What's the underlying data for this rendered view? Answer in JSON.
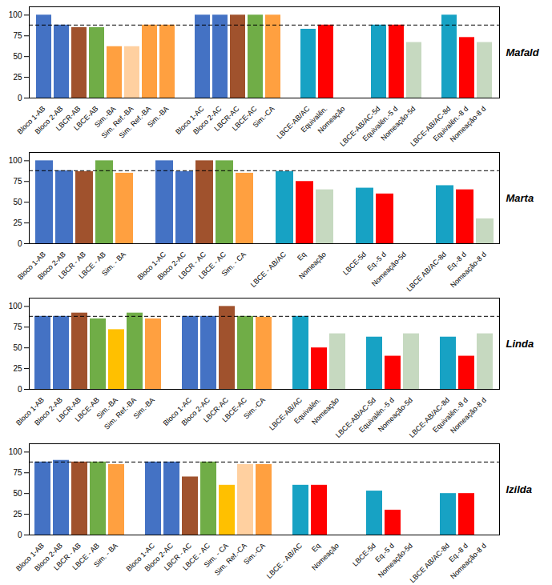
{
  "chart_data": [
    {
      "type": "bar",
      "title": "Mafald",
      "categories": [
        "Bloco 1-AB",
        "Bloco 2-AB",
        "LBCR-AB",
        "LBCE-AB",
        "Sim.-BA",
        "Sim. Ref.-BA",
        "Sim. Ref.-BA",
        "Sim.-BA",
        null,
        "Bloco 1-AC",
        "Bloco 2-AC",
        "LBCR-AC",
        "LBCE-AC",
        "Sim.-CA",
        null,
        "LBCE-AB/AC",
        "Equivalên.",
        "Nomeação",
        null,
        "LBCE-AB/AC-5d",
        "Equivalên.-5 d",
        "Nomeação-5d",
        null,
        "LBCE-AB/AC-8d",
        "Equivalên.-8 d",
        "Nomeação-8 d"
      ],
      "values": [
        100,
        88,
        85,
        85,
        62,
        62,
        88,
        88,
        null,
        100,
        100,
        100,
        100,
        100,
        null,
        83,
        88,
        0,
        null,
        88,
        88,
        67,
        null,
        100,
        73,
        67
      ],
      "colors": [
        "#4472C4",
        "#4472C4",
        "#A0522D",
        "#70AD47",
        "#FFA040",
        "#FFD0A0",
        "#FFA040",
        "#FFA040",
        null,
        "#4472C4",
        "#4472C4",
        "#A0522D",
        "#70AD47",
        "#FFA040",
        null,
        "#17A2C4",
        "#FF0000",
        "#A9D18E",
        null,
        "#17A2C4",
        "#FF0000",
        "#C6D9C0",
        null,
        "#17A2C4",
        "#FF0000",
        "#C6D9C0"
      ],
      "reference_y": 88,
      "ylim": [
        0,
        110
      ],
      "yticks": [
        0,
        25,
        50,
        75,
        100
      ],
      "grid": false
    },
    {
      "type": "bar",
      "title": "Marta",
      "categories": [
        "Bloco 1-AB",
        "Bloco 2-AB",
        "LBCR - AB",
        "LBCE - AB",
        "Sim. - BA",
        null,
        "Bloco 1-AC",
        "Bloco 2-AC",
        "LBCR - AC",
        "LBCE - AC",
        "Sim. - CA",
        null,
        "LBCE - AB/AC",
        "Eq",
        "Nomeação",
        null,
        "LBCE-5d",
        "Eq.-5 d",
        "Nomeação-5d",
        null,
        "LBCE AB/AC-8d",
        "Eq.-8 d",
        "Nomeação-8 d"
      ],
      "values": [
        100,
        88,
        87,
        100,
        85,
        null,
        100,
        87,
        100,
        100,
        85,
        null,
        87,
        75,
        65,
        null,
        67,
        60,
        0,
        null,
        70,
        65,
        30
      ],
      "colors": [
        "#4472C4",
        "#4472C4",
        "#A0522D",
        "#70AD47",
        "#FFA040",
        null,
        "#4472C4",
        "#4472C4",
        "#A0522D",
        "#70AD47",
        "#FFA040",
        null,
        "#17A2C4",
        "#FF0000",
        "#C6D9C0",
        null,
        "#17A2C4",
        "#FF0000",
        "#C6D9C0",
        null,
        "#17A2C4",
        "#FF0000",
        "#C6D9C0"
      ],
      "reference_y": 88,
      "ylim": [
        0,
        110
      ],
      "yticks": [
        0,
        25,
        50,
        75,
        100
      ],
      "grid": false
    },
    {
      "type": "bar",
      "title": "Linda",
      "categories": [
        "Bloco 1-AB",
        "Bloco 2-AB",
        "LBCR-AB",
        "LBCE-AB",
        "Sim.-BA",
        "Sim. Ref.-BA",
        "Sim.-BA",
        null,
        "Bloco 1-AC",
        "Bloco 2-AC",
        "LBCR-AC",
        "LBCE-AC",
        "Sim.-CA",
        null,
        "LBCE-AB/AC",
        "Equivalên.",
        "Nomeação",
        null,
        "LBCE-AB/AC-5d",
        "Equivalên.-5 d",
        "Nomeação-5d",
        null,
        "LBCE-AB/AC-8d",
        "Equivalên.-8 d",
        "Nomeação-8 d"
      ],
      "values": [
        88,
        88,
        92,
        85,
        72,
        92,
        85,
        null,
        88,
        88,
        100,
        88,
        87,
        null,
        88,
        50,
        67,
        null,
        63,
        40,
        67,
        null,
        63,
        40,
        67
      ],
      "colors": [
        "#4472C4",
        "#4472C4",
        "#A0522D",
        "#70AD47",
        "#FFC000",
        "#70AD47",
        "#FFA040",
        null,
        "#4472C4",
        "#4472C4",
        "#A0522D",
        "#70AD47",
        "#FFA040",
        null,
        "#17A2C4",
        "#FF0000",
        "#C6D9C0",
        null,
        "#17A2C4",
        "#FF0000",
        "#C6D9C0",
        null,
        "#17A2C4",
        "#FF0000",
        "#C6D9C0"
      ],
      "reference_y": 88,
      "ylim": [
        0,
        110
      ],
      "yticks": [
        0,
        25,
        50,
        75,
        100
      ],
      "grid": false
    },
    {
      "type": "bar",
      "title": "Izilda",
      "categories": [
        "Bloco 1-AB",
        "Bloco 2-AB",
        "LBCR - AB",
        "LBCE - AB",
        "Sim. - BA",
        null,
        "Bloco 1-AC",
        "Bloco 2-AC",
        "LBCR - AC",
        "LBCE - AC",
        "Sim. - CA",
        "Sim. Ref.-CA",
        "Sim.-CA",
        null,
        "LBCE - AB/AC",
        "Eq",
        "Nomeação",
        null,
        "LBCE-5d",
        "Eq.-5 d",
        "Nomeação-5d",
        null,
        "LBCE AB/AC-8d",
        "Eq.-8 d",
        "Nomeação-8 d"
      ],
      "values": [
        88,
        90,
        88,
        88,
        85,
        null,
        88,
        88,
        70,
        88,
        60,
        85,
        85,
        null,
        60,
        60,
        0,
        null,
        53,
        30,
        0,
        null,
        50,
        50,
        0
      ],
      "colors": [
        "#4472C4",
        "#4472C4",
        "#A0522D",
        "#70AD47",
        "#FFA040",
        null,
        "#4472C4",
        "#4472C4",
        "#A0522D",
        "#70AD47",
        "#FFC000",
        "#FFD0A0",
        "#FFA040",
        null,
        "#17A2C4",
        "#FF0000",
        "#C6D9C0",
        null,
        "#17A2C4",
        "#FF0000",
        "#C6D9C0",
        null,
        "#17A2C4",
        "#FF0000",
        "#C6D9C0"
      ],
      "reference_y": 88,
      "ylim": [
        0,
        110
      ],
      "yticks": [
        0,
        25,
        50,
        75,
        100
      ],
      "grid": false
    }
  ]
}
